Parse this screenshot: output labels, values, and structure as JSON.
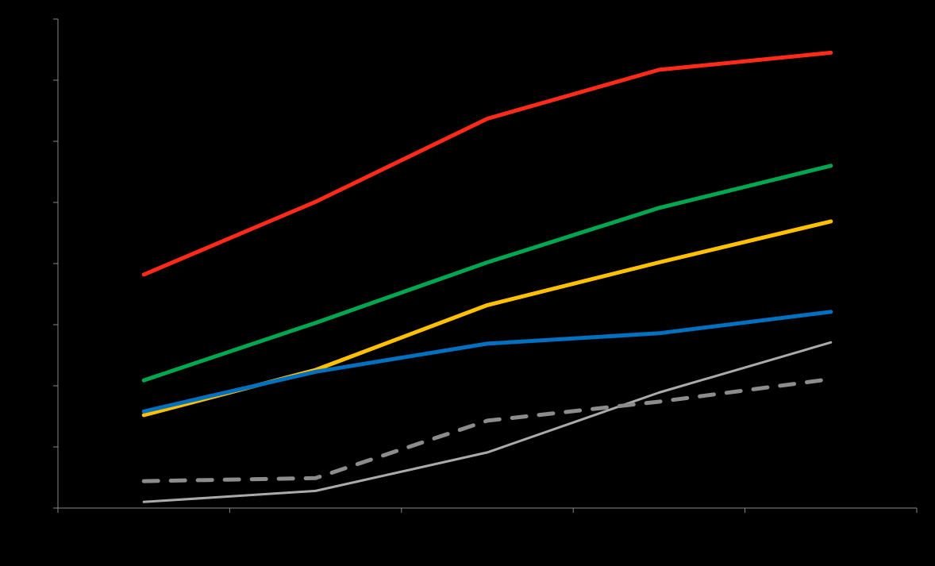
{
  "chart_data": {
    "type": "line",
    "title": "",
    "xlabel": "",
    "ylabel": "",
    "background": "#000000",
    "axis_color": "#888888",
    "grid": false,
    "x": [
      0.5,
      1.5,
      2.5,
      3.5,
      4.5
    ],
    "xlim": [
      0,
      5
    ],
    "ylim": [
      0,
      8
    ],
    "x_tick_positions": [
      0,
      1,
      2,
      3,
      4,
      5
    ],
    "y_tick_positions": [
      0,
      1,
      2,
      3,
      4,
      5,
      6,
      7,
      8
    ],
    "series": [
      {
        "color": "#ff2a1a",
        "style": "solid",
        "width": "thick",
        "values": [
          3.82,
          5.01,
          6.37,
          7.17,
          7.45
        ]
      },
      {
        "color": "#00a650",
        "style": "solid",
        "width": "thick",
        "values": [
          2.09,
          3.03,
          4.02,
          4.91,
          5.6
        ]
      },
      {
        "color": "#ffc000",
        "style": "solid",
        "width": "thick",
        "values": [
          1.52,
          2.26,
          3.32,
          4.02,
          4.69
        ]
      },
      {
        "color": "#0070c0",
        "style": "solid",
        "width": "thick",
        "values": [
          1.58,
          2.23,
          2.69,
          2.86,
          3.21
        ]
      },
      {
        "color": "#aaaaaa",
        "style": "solid",
        "width": "thin",
        "values": [
          0.1,
          0.28,
          0.91,
          1.89,
          2.71
        ]
      },
      {
        "color": "#8c8c8c",
        "style": "dashed",
        "width": "thick",
        "values": [
          0.44,
          0.49,
          1.43,
          1.74,
          2.11
        ]
      }
    ]
  }
}
